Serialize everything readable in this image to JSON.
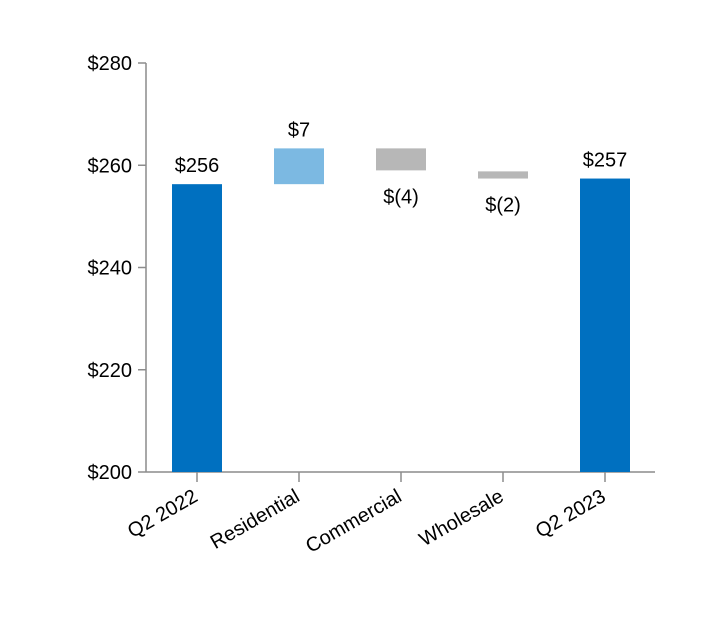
{
  "chart_data": {
    "type": "waterfall",
    "title": "",
    "xlabel": "",
    "ylabel": "",
    "ylim": [
      200,
      280
    ],
    "yticks": [
      200,
      220,
      240,
      260,
      280
    ],
    "ytick_labels": [
      "$200",
      "$220",
      "$240",
      "$260",
      "$280"
    ],
    "grid": false,
    "bars": [
      {
        "category": "Q2 2022",
        "kind": "total",
        "start": 200,
        "end": 256.3,
        "value": 256,
        "label": "$256",
        "label_position": "above",
        "color": "#0070C0"
      },
      {
        "category": "Residential",
        "kind": "increase",
        "start": 256.3,
        "end": 263.3,
        "value": 7,
        "label": "$7",
        "label_position": "above",
        "color": "#7CB9E2"
      },
      {
        "category": "Commercial",
        "kind": "decrease",
        "start": 263.3,
        "end": 259.0,
        "value": -4,
        "label": "$(4)",
        "label_position": "below",
        "color": "#B7B7B7"
      },
      {
        "category": "Wholesale",
        "kind": "decrease",
        "start": 258.8,
        "end": 257.4,
        "value": -2,
        "label": "$(2)",
        "label_position": "below",
        "color": "#B7B7B7"
      },
      {
        "category": "Q2 2023",
        "kind": "total",
        "start": 200,
        "end": 257.4,
        "value": 257,
        "label": "$257",
        "label_position": "above",
        "color": "#0070C0"
      }
    ],
    "axis_color": "#8C8C8C"
  }
}
